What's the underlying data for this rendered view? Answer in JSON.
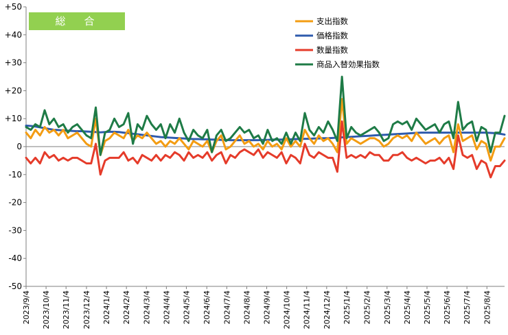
{
  "chart_data": {
    "type": "line",
    "title": "総　合",
    "title_box_color": "#92d050",
    "ylim": [
      -50,
      50
    ],
    "yticks": [
      50,
      40,
      30,
      20,
      10,
      0,
      -10,
      -20,
      -30,
      -40,
      -50
    ],
    "ytick_labels": [
      "+50",
      "+40",
      "+30",
      "+20",
      "+10",
      "0",
      "-10",
      "-20",
      "-30",
      "-40",
      "-50"
    ],
    "x_tick_labels": [
      "2023/9/4",
      "2023/10/4",
      "2023/11/4",
      "2023/12/4",
      "2024/1/4",
      "2024/2/4",
      "2024/3/4",
      "2024/4/4",
      "2024/5/4",
      "2024/6/4",
      "2024/7/4",
      "2024/8/4",
      "2024/9/4",
      "2024/10/4",
      "2024/11/4",
      "2024/12/4",
      "2025/1/4",
      "2025/2/4",
      "2025/3/4",
      "2025/4/4",
      "2025/5/4",
      "2025/6/4",
      "2025/7/4",
      "2025/8/4"
    ],
    "x_tick_index": [
      0,
      4.3,
      8.6,
      13.0,
      17.3,
      21.6,
      25.9,
      30.2,
      34.5,
      38.9,
      43.2,
      47.5,
      51.8,
      56.1,
      60.4,
      64.7,
      69.0,
      73.4,
      77.7,
      82.0,
      86.3,
      90.6,
      94.9,
      99.2
    ],
    "legend_position": "top-right",
    "grid": false,
    "series": [
      {
        "name": "支出指数",
        "color": "#f39c12",
        "values": [
          5,
          3,
          6,
          4,
          7,
          5,
          6,
          4,
          6,
          3,
          4,
          5,
          3,
          1,
          0,
          10,
          -3,
          2,
          3,
          5,
          4,
          3,
          6,
          2,
          4,
          3,
          5,
          3,
          1,
          2,
          0,
          2,
          1,
          3,
          1,
          -1,
          2,
          1,
          0,
          2,
          -2,
          2,
          4,
          -1,
          0,
          2,
          4,
          1,
          2,
          0,
          1,
          -1,
          2,
          0,
          1,
          -1,
          3,
          0,
          2,
          0,
          6,
          3,
          1,
          4,
          2,
          3,
          1,
          -2,
          17,
          1,
          3,
          2,
          1,
          2,
          3,
          3,
          2,
          0,
          1,
          3,
          4,
          3,
          4,
          2,
          5,
          3,
          1,
          2,
          3,
          1,
          3,
          4,
          -2,
          8,
          2,
          3,
          4,
          -1,
          2,
          1,
          -5,
          0,
          0,
          3
        ]
      },
      {
        "name": "価格指数",
        "color": "#2e5aac",
        "values": [
          7.5,
          7.4,
          7.2,
          6.9,
          6.6,
          6.3,
          6.0,
          5.9,
          5.8,
          5.7,
          5.6,
          5.5,
          5.5,
          5.4,
          5.3,
          5.2,
          5.1,
          5.2,
          5.3,
          5.3,
          5.2,
          5.0,
          4.8,
          4.6,
          4.4,
          4.2,
          4.0,
          3.8,
          3.6,
          3.4,
          3.3,
          3.2,
          3.1,
          3.0,
          2.9,
          2.8,
          2.7,
          2.7,
          2.6,
          2.6,
          2.5,
          2.5,
          2.4,
          2.4,
          2.3,
          2.3,
          2.3,
          2.3,
          2.3,
          2.3,
          2.3,
          2.4,
          2.4,
          2.5,
          2.5,
          2.5,
          2.6,
          2.6,
          2.7,
          2.7,
          2.8,
          2.8,
          2.9,
          2.9,
          3.0,
          3.0,
          3.1,
          3.2,
          3.3,
          3.4,
          3.5,
          3.6,
          3.7,
          3.8,
          3.9,
          4.0,
          4.1,
          4.2,
          4.3,
          4.4,
          4.5,
          4.6,
          4.7,
          4.8,
          4.9,
          5.0,
          5.0,
          5.0,
          5.0,
          5.0,
          5.0,
          5.0,
          5.0,
          5.0,
          5.0,
          5.0,
          5.0,
          5.0,
          5.0,
          5.0,
          4.9,
          4.8,
          4.6,
          4.3
        ]
      },
      {
        "name": "数量指数",
        "color": "#e53b2a",
        "values": [
          -4,
          -6,
          -4,
          -6,
          -2,
          -4,
          -3,
          -5,
          -4,
          -5,
          -4,
          -4,
          -5,
          -6,
          -6,
          1,
          -10,
          -5,
          -4,
          -4,
          -4,
          -2,
          -5,
          -4,
          -6,
          -3,
          -4,
          -5,
          -3,
          -5,
          -3,
          -4,
          -2,
          -3,
          -5,
          -2,
          -4,
          -3,
          -4,
          -2,
          -5,
          -3,
          -2,
          -6,
          -3,
          -4,
          -2,
          -1,
          -2,
          -3,
          -1,
          -4,
          -2,
          -3,
          -4,
          -2,
          -6,
          -3,
          -4,
          -6,
          1,
          -3,
          -4,
          -2,
          -3,
          -4,
          -4,
          -9,
          9,
          -4,
          -3,
          -4,
          -3,
          -4,
          -2,
          -3,
          -3,
          -5,
          -5,
          -3,
          -3,
          -2,
          -4,
          -5,
          -4,
          -5,
          -6,
          -5,
          -5,
          -4,
          -6,
          -4,
          -8,
          4,
          -3,
          -4,
          -3,
          -8,
          -5,
          -6,
          -11,
          -7,
          -7,
          -5
        ]
      },
      {
        "name": "商品入替効果指数",
        "color": "#1e7b46",
        "values": [
          7,
          6,
          8,
          7,
          13,
          8,
          10,
          7,
          8,
          5,
          7,
          8,
          6,
          4,
          3,
          14,
          -3,
          5,
          6,
          10,
          7,
          8,
          12,
          1,
          8,
          6,
          11,
          8,
          6,
          8,
          3,
          8,
          5,
          10,
          5,
          2,
          6,
          4,
          3,
          6,
          -2,
          4,
          6,
          2,
          3,
          5,
          7,
          5,
          6,
          3,
          4,
          1,
          6,
          2,
          3,
          1,
          5,
          1,
          5,
          2,
          12,
          6,
          4,
          7,
          5,
          9,
          6,
          2,
          25,
          3,
          7,
          5,
          4,
          5,
          6,
          7,
          5,
          2,
          3,
          8,
          9,
          8,
          9,
          6,
          10,
          8,
          6,
          7,
          8,
          5,
          8,
          9,
          3,
          16,
          6,
          8,
          9,
          2,
          7,
          6,
          -2,
          5,
          5,
          11
        ]
      }
    ]
  }
}
